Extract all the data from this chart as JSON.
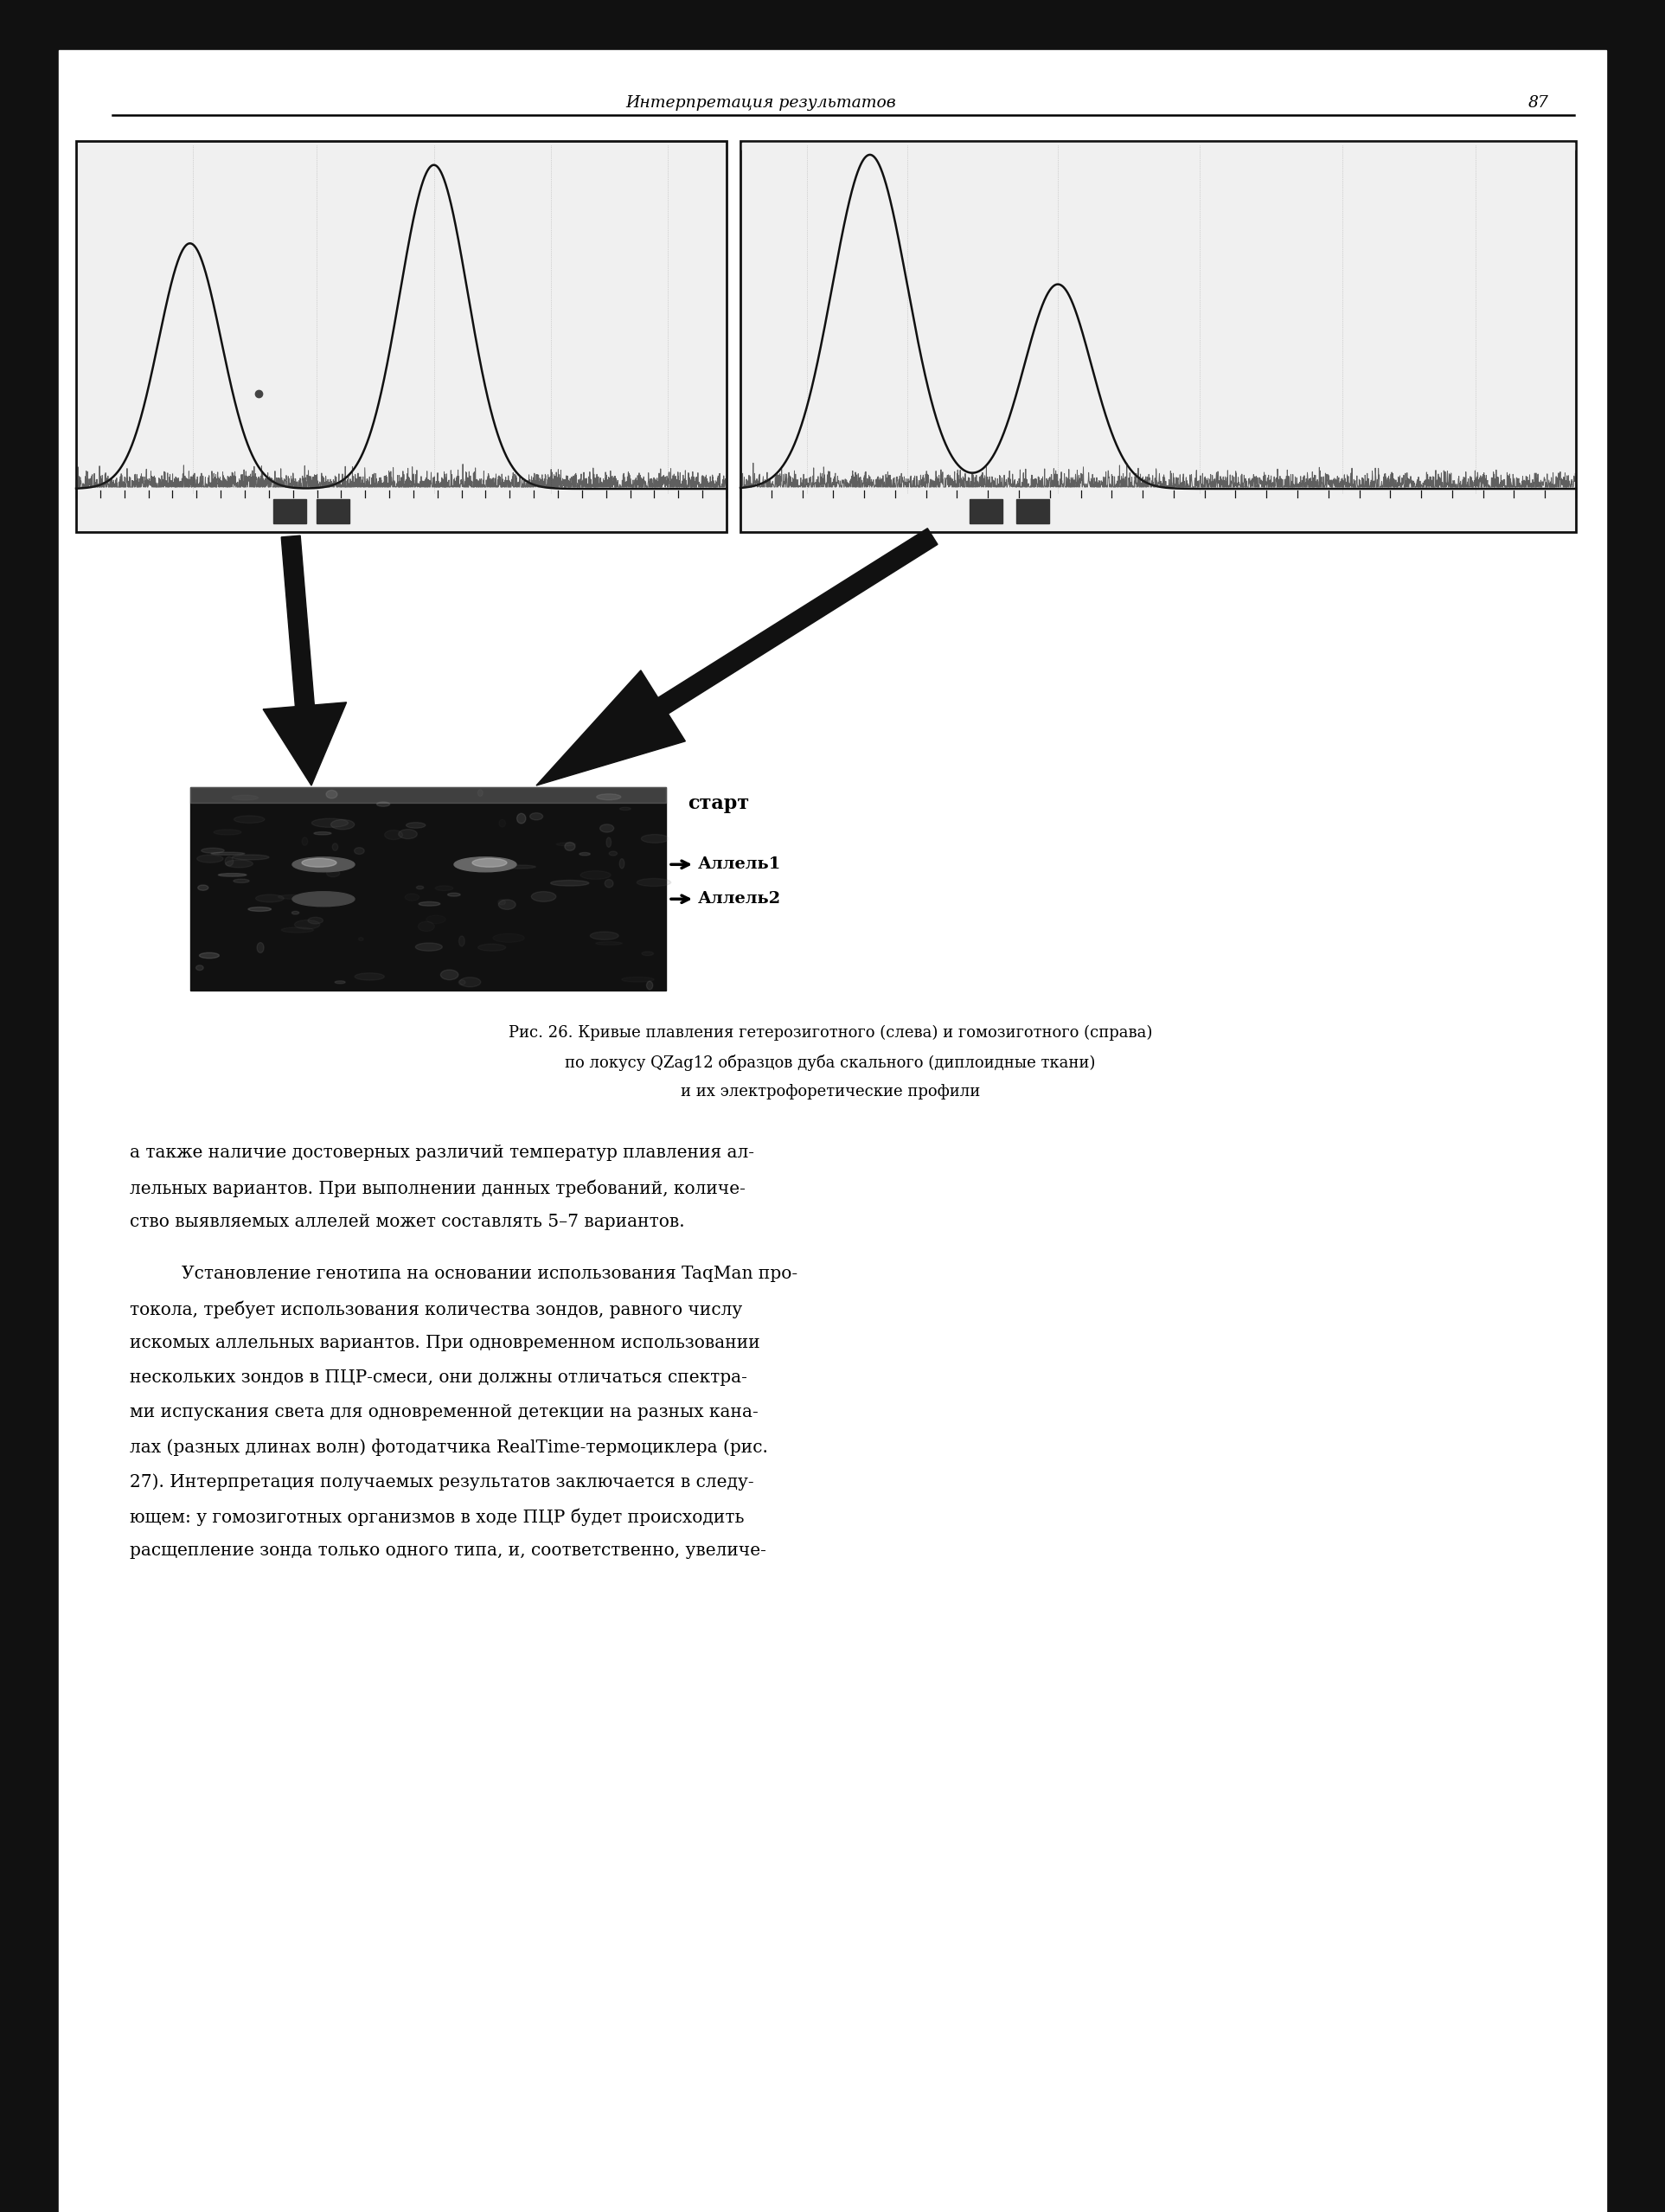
{
  "header_text": "Интерпретация результатов",
  "page_number": "87",
  "caption_line1": "Рис. 26. Кривые плавления гетерозиготного (слева) и гомозиготного (справа)",
  "caption_line2": "по локусу QZag12 образцов дуба скального (диплоидные ткани)",
  "caption_line3": "и их электрофоретические профили",
  "legend_start": "старт",
  "legend_allele1": "Аллель1",
  "legend_allele2": "Аллель2",
  "body_paragraphs": [
    {
      "indent": false,
      "lines": [
        "а также наличие достоверных различий температур плавления ал-",
        "лельных вариантов. При выполнении данных требований, количе-",
        "ство выявляемых аллелей может составлять 5–7 вариантов."
      ]
    },
    {
      "indent": true,
      "lines": [
        "Установление генотипа на основании использования TaqMan про-",
        "токола, требует использования количества зондов, равного числу",
        "искомых аллельных вариантов. При одновременном использовании",
        "нескольких зондов в ПЦР-смеси, они должны отличаться спектра-",
        "ми испускания света для одновременной детекции на разных кана-",
        "лах (разных длинах волн) фотодатчика RealTime-термоциклера (рис.",
        "27). Интерпретация получаемых результатов заключается в следу-",
        "ющем: у гомозиготных организмов в ходе ПЦР будет происходить",
        "расщепление зонда только одного типа, и, соответственно, увеличе-"
      ]
    }
  ]
}
